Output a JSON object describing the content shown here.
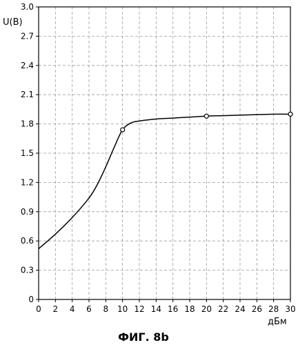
{
  "chart_data": {
    "type": "line",
    "title": "",
    "xlabel": "дБм",
    "ylabel": "U(B)",
    "caption": "ФИГ. 8b",
    "xlim": [
      0,
      30
    ],
    "ylim": [
      0,
      3.0
    ],
    "grid": true,
    "x_ticks": [
      "0",
      "2",
      "4",
      "6",
      "8",
      "10",
      "12",
      "14",
      "16",
      "18",
      "20",
      "22",
      "24",
      "26",
      "28",
      "30"
    ],
    "y_ticks": [
      "0",
      "0.3",
      "0.6",
      "0.9",
      "1.2",
      "1.5",
      "1.8",
      "2.1",
      "2.4",
      "2.7",
      "3.0"
    ],
    "series": [
      {
        "x": [
          0,
          2,
          4,
          6,
          7,
          8,
          9,
          10,
          11,
          12,
          14,
          16,
          18,
          20,
          22,
          24,
          26,
          28,
          30
        ],
        "y": [
          0.52,
          0.67,
          0.84,
          1.04,
          1.18,
          1.36,
          1.56,
          1.74,
          1.81,
          1.83,
          1.85,
          1.86,
          1.87,
          1.88,
          1.885,
          1.89,
          1.895,
          1.9,
          1.9
        ]
      }
    ],
    "markers": {
      "x": [
        10,
        20,
        30
      ],
      "y": [
        1.74,
        1.88,
        1.9
      ]
    }
  }
}
